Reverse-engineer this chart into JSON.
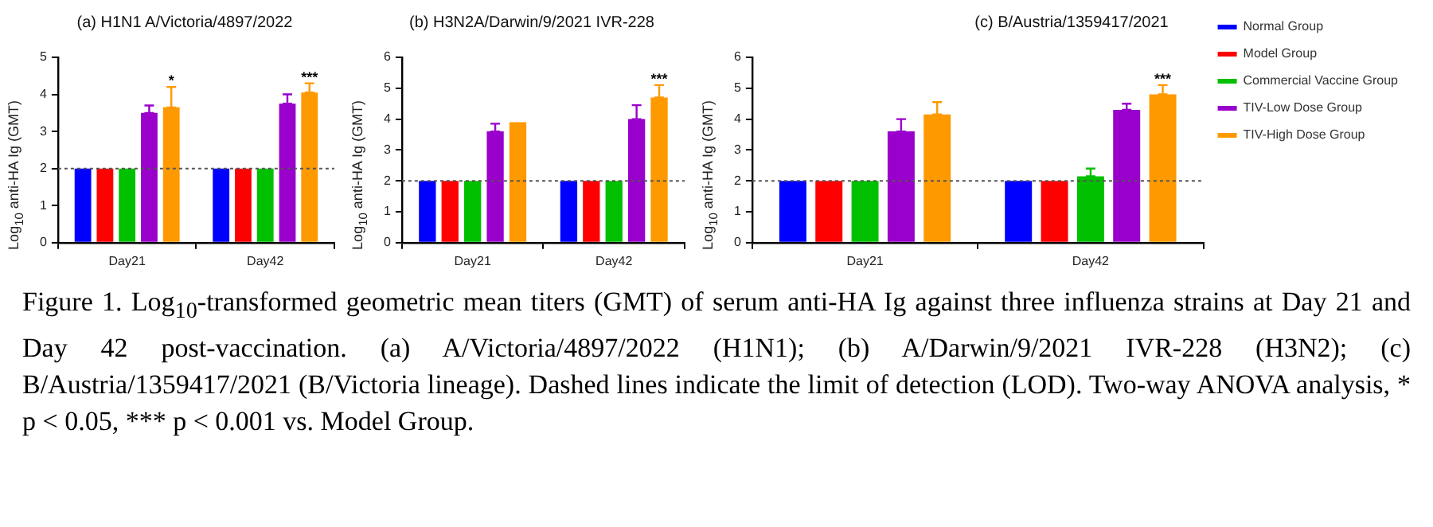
{
  "chart_data": [
    {
      "type": "bar",
      "title": "(a) H1N1 A/Victoria/4897/2022",
      "ylabel": "Log$_{10}$ anti-HA Ig (GMT)",
      "categories": [
        "Day21",
        "Day42"
      ],
      "ylim": [
        0,
        5
      ],
      "yticks": [
        0,
        1,
        2,
        3,
        4,
        5
      ],
      "grid": false,
      "legend": false,
      "series": [
        {
          "color": "#0000ff",
          "values": [
            2,
            2
          ]
        },
        {
          "color": "#ff0000",
          "values": [
            2,
            2
          ]
        },
        {
          "color": "#00c000",
          "values": [
            2,
            2
          ]
        },
        {
          "color": "#9900cc",
          "values": [
            3.5,
            3.75
          ],
          "errors": [
            [
              3.5,
              3.7
            ],
            [
              3.75,
              4.0
            ]
          ]
        },
        {
          "color": "#ff9900",
          "values": [
            3.65,
            4.05
          ],
          "errors": [
            [
              3.65,
              4.2
            ],
            [
              4.05,
              4.3
            ]
          ],
          "value_labels": [
            "*",
            "***"
          ]
        }
      ],
      "ref_lines": [
        {
          "axis": "y",
          "value": 2,
          "line_style": "dotted",
          "color": "#555555"
        }
      ]
    },
    {
      "type": "bar",
      "title": "(b) H3N2A/Darwin/9/2021 IVR-228",
      "ylabel": "Log$_{10}$ anti-HA Ig (GMT)",
      "categories": [
        "Day21",
        "Day42"
      ],
      "ylim": [
        0,
        6
      ],
      "yticks": [
        0,
        1,
        2,
        3,
        4,
        5,
        6
      ],
      "grid": false,
      "legend": false,
      "series": [
        {
          "color": "#0000ff",
          "values": [
            2,
            2
          ]
        },
        {
          "color": "#ff0000",
          "values": [
            2,
            2
          ]
        },
        {
          "color": "#00c000",
          "values": [
            2,
            2
          ]
        },
        {
          "color": "#9900cc",
          "values": [
            3.6,
            4.0
          ],
          "errors": [
            [
              3.6,
              3.85
            ],
            [
              4.0,
              4.45
            ]
          ]
        },
        {
          "color": "#ff9900",
          "values": [
            3.9,
            4.7
          ],
          "errors": [
            null,
            [
              4.7,
              5.1
            ]
          ],
          "value_labels": [
            null,
            "***"
          ]
        }
      ],
      "ref_lines": [
        {
          "axis": "y",
          "value": 2,
          "line_style": "dotted",
          "color": "#555555"
        }
      ]
    },
    {
      "type": "bar",
      "title": "(c) B/Austria/1359417/2021",
      "ylabel": "Log$_{10}$ anti-HA Ig (GMT)",
      "categories": [
        "Day21",
        "Day42"
      ],
      "ylim": [
        0,
        6
      ],
      "yticks": [
        0,
        1,
        2,
        3,
        4,
        5,
        6
      ],
      "grid": false,
      "legend": "right",
      "series": [
        {
          "name": "Normal Group",
          "color": "#0000ff",
          "values": [
            2,
            2
          ]
        },
        {
          "name": "Model Group",
          "color": "#ff0000",
          "values": [
            2,
            2
          ]
        },
        {
          "name": "Commercial Vaccine Group",
          "color": "#00c000",
          "values": [
            2,
            2.15
          ],
          "errors": [
            null,
            [
              2.15,
              2.4
            ]
          ]
        },
        {
          "name": "TIV-Low Dose Group",
          "color": "#9900cc",
          "values": [
            3.6,
            4.3
          ],
          "errors": [
            [
              3.6,
              4.0
            ],
            [
              4.3,
              4.5
            ]
          ]
        },
        {
          "name": "TIV-High Dose Group",
          "color": "#ff9900",
          "values": [
            4.15,
            4.8
          ],
          "errors": [
            [
              4.15,
              4.55
            ],
            [
              4.8,
              5.1
            ]
          ],
          "value_labels": [
            null,
            "***"
          ]
        }
      ],
      "ref_lines": [
        {
          "axis": "y",
          "value": 2,
          "line_style": "dotted",
          "color": "#555555"
        }
      ],
      "annotations": [
        "Figure 1.  Log$_{10}$-transformed geometric mean titers (GMT) of serum anti-HA Ig against three influenza strains at Day 21 and Day 42 post-vaccination.  (a) A/Victoria/4897/2022 (H1N1); (b) A/Darwin/9/2021 IVR-228 (H3N2); (c) B/Austria/1359417/2021 (B/Victoria lineage). Dashed lines indicate the limit of detection (LOD). Two-way ANOVA analysis, * p < 0.05, *** p < 0.001 vs. Model Group."
      ]
    }
  ]
}
